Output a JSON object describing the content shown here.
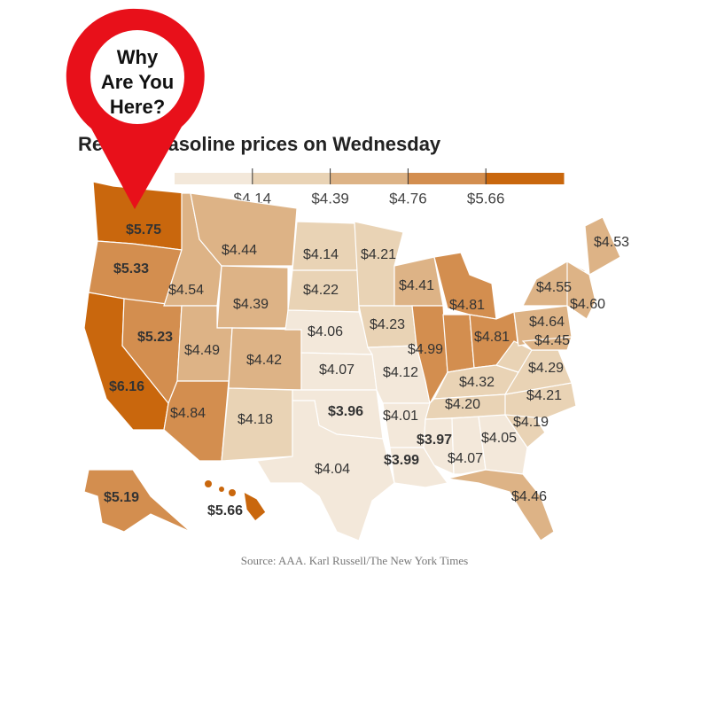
{
  "pin": {
    "lines": [
      "Why",
      "Are You",
      "Here?"
    ]
  },
  "title": "Regular gasoline prices on Wednesday",
  "legend": {
    "colors": [
      "#f3e8da",
      "#e9d3b5",
      "#ddb386",
      "#d38e4f",
      "#c9670d"
    ],
    "ticks": [
      "$4.14",
      "$4.39",
      "$4.76",
      "$5.66"
    ]
  },
  "states": [
    {
      "label": "$5.75",
      "bold": true,
      "color": "#c9670d"
    },
    {
      "label": "$5.33",
      "bold": true,
      "color": "#d38e4f"
    },
    {
      "label": "$6.16",
      "bold": true,
      "color": "#c9670d"
    },
    {
      "label": "$5.23",
      "bold": true,
      "color": "#d38e4f"
    },
    {
      "label": "$4.54",
      "bold": false,
      "color": "#ddb386"
    },
    {
      "label": "$4.44",
      "bold": false,
      "color": "#ddb386"
    },
    {
      "label": "$4.39",
      "bold": false,
      "color": "#ddb386"
    },
    {
      "label": "$4.49",
      "bold": false,
      "color": "#ddb386"
    },
    {
      "label": "$4.42",
      "bold": false,
      "color": "#ddb386"
    },
    {
      "label": "$4.84",
      "bold": false,
      "color": "#d38e4f"
    },
    {
      "label": "$4.18",
      "bold": false,
      "color": "#e9d3b5"
    },
    {
      "label": "$4.14",
      "bold": false,
      "color": "#e9d3b5"
    },
    {
      "label": "$4.22",
      "bold": false,
      "color": "#e9d3b5"
    },
    {
      "label": "$4.06",
      "bold": false,
      "color": "#f3e8da"
    },
    {
      "label": "$4.07",
      "bold": false,
      "color": "#f3e8da"
    },
    {
      "label": "$3.96",
      "bold": true,
      "color": "#f3e8da"
    },
    {
      "label": "$4.04",
      "bold": false,
      "color": "#f3e8da"
    },
    {
      "label": "$4.21",
      "bold": false,
      "color": "#e9d3b5"
    },
    {
      "label": "$4.23",
      "bold": false,
      "color": "#e9d3b5"
    },
    {
      "label": "$4.12",
      "bold": false,
      "color": "#f3e8da"
    },
    {
      "label": "$4.41",
      "bold": false,
      "color": "#ddb386"
    },
    {
      "label": "$4.99",
      "bold": false,
      "color": "#d38e4f"
    },
    {
      "label": null,
      "bold": false,
      "color": "#d38e4f"
    },
    {
      "label": "$4.81",
      "bold": false,
      "color": "#d38e4f"
    },
    {
      "label": "$4.81",
      "bold": false,
      "color": "#d38e4f"
    },
    {
      "label": "$4.32",
      "bold": false,
      "color": "#e9d3b5"
    },
    {
      "label": "$4.20",
      "bold": false,
      "color": "#e9d3b5"
    },
    {
      "label": "$4.01",
      "bold": false,
      "color": "#f3e8da"
    },
    {
      "label": "$3.99",
      "bold": true,
      "color": "#f3e8da"
    },
    {
      "label": "$3.97",
      "bold": true,
      "color": "#f3e8da"
    },
    {
      "label": "$4.07",
      "bold": false,
      "color": "#f3e8da"
    },
    {
      "label": "$4.05",
      "bold": false,
      "color": "#f3e8da"
    },
    {
      "label": "$4.46",
      "bold": false,
      "color": "#ddb386"
    },
    {
      "label": "$4.19",
      "bold": false,
      "color": "#e9d3b5"
    },
    {
      "label": "$4.21",
      "bold": false,
      "color": "#e9d3b5"
    },
    {
      "label": "$4.29",
      "bold": false,
      "color": "#e9d3b5"
    },
    {
      "label": null,
      "bold": false,
      "color": "#e9d3b5"
    },
    {
      "label": "$4.64",
      "bold": false,
      "color": "#ddb386"
    },
    {
      "label": "$4.55",
      "bold": false,
      "color": "#ddb386"
    },
    {
      "label": "$4.53",
      "bold": false,
      "color": "#ddb386"
    },
    {
      "label": "$4.60",
      "bold": false,
      "color": "#ddb386"
    },
    {
      "label": "$4.45",
      "bold": false,
      "color": "#ddb386"
    },
    {
      "label": "$5.19",
      "bold": true,
      "color": "#d38e4f"
    },
    {
      "label": "$5.66",
      "bold": true,
      "color": "#c9670d"
    }
  ],
  "source": "Source: AAA. Karl Russell/The New York Times"
}
